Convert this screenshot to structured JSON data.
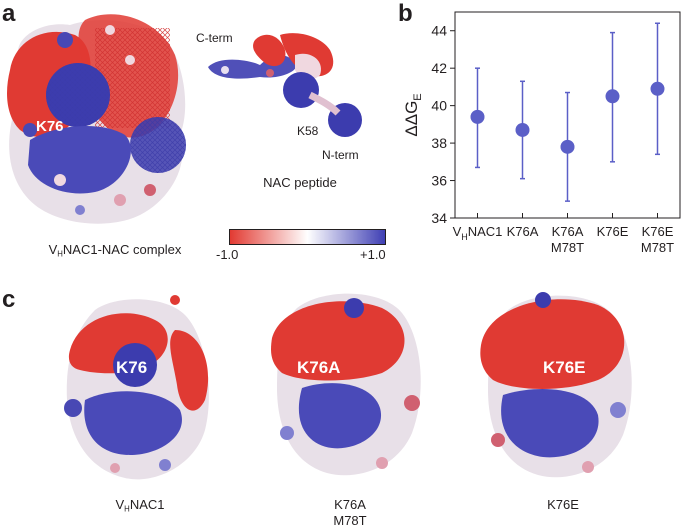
{
  "panels": {
    "a": "a",
    "b": "b",
    "c": "c"
  },
  "panel_a": {
    "complex_caption_pre": "V",
    "complex_caption_sub": "H",
    "complex_caption_post": "NAC1-NAC complex",
    "residue_label": "K76",
    "peptide_caption": "NAC peptide",
    "c_term": "C-term",
    "n_term": "N-term",
    "k58": "K58"
  },
  "colorbar": {
    "min_label": "-1.0",
    "max_label": "+1.0",
    "low_color": "#e23a32",
    "mid_color": "#ffffff",
    "high_color": "#3f3fb4"
  },
  "panel_c": [
    {
      "residue": "K76",
      "caption_line1_pre": "V",
      "caption_line1_sub": "H",
      "caption_line1_post": "NAC1",
      "caption_line2": ""
    },
    {
      "residue": "K76A",
      "caption_line1_pre": "K76A",
      "caption_line1_sub": "",
      "caption_line1_post": "",
      "caption_line2": "M78T"
    },
    {
      "residue": "K76E",
      "caption_line1_pre": "K76E",
      "caption_line1_sub": "",
      "caption_line1_post": "",
      "caption_line2": ""
    }
  ],
  "chart_data": {
    "type": "scatter",
    "ylabel_main": "ΔΔG",
    "ylabel_sub": "E",
    "ylim": [
      34,
      45
    ],
    "yticks": [
      "34",
      "36",
      "38",
      "40",
      "42",
      "44"
    ],
    "marker_color": "#5b5fc7",
    "categories": [
      {
        "line1_pre": "V",
        "line1_sub": "H",
        "line1_post": "NAC1",
        "line2": ""
      },
      {
        "line1_pre": "K76A",
        "line1_sub": "",
        "line1_post": "",
        "line2": ""
      },
      {
        "line1_pre": "K76A",
        "line1_sub": "",
        "line1_post": "",
        "line2": "M78T"
      },
      {
        "line1_pre": "K76E",
        "line1_sub": "",
        "line1_post": "",
        "line2": ""
      },
      {
        "line1_pre": "K76E",
        "line1_sub": "",
        "line1_post": "",
        "line2": "M78T"
      }
    ],
    "values": [
      39.4,
      38.7,
      37.8,
      40.5,
      40.9
    ],
    "error_low": [
      36.7,
      36.1,
      34.9,
      37.0,
      37.4
    ],
    "error_high": [
      42.0,
      41.3,
      40.7,
      43.9,
      44.4
    ]
  }
}
